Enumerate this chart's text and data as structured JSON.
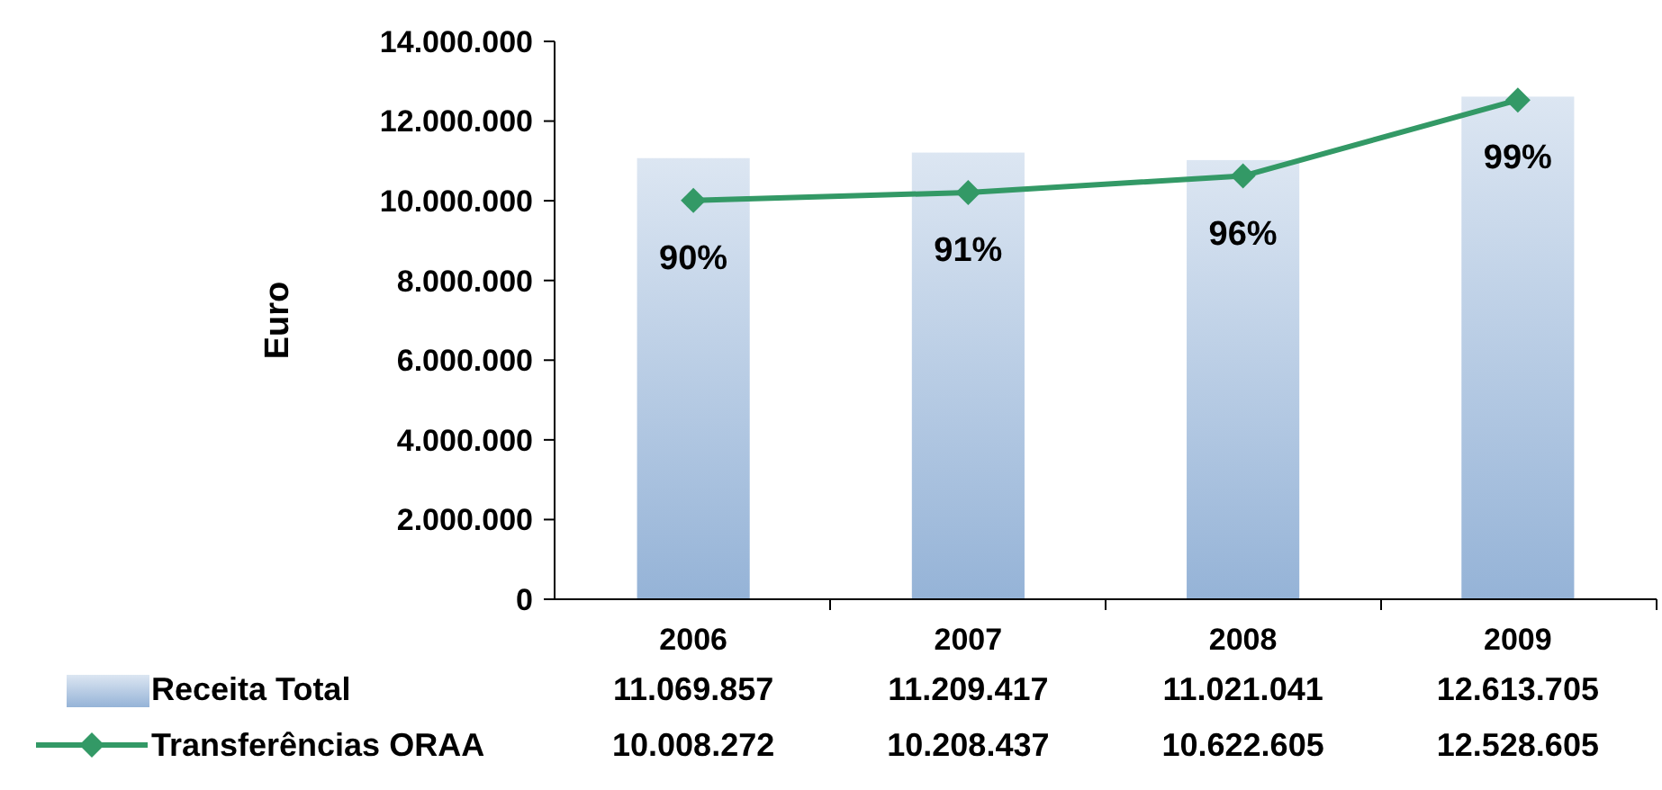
{
  "chart_data": {
    "type": "bar",
    "ylabel": "Euro",
    "categories": [
      "2006",
      "2007",
      "2008",
      "2009"
    ],
    "series": [
      {
        "name": "Receita Total",
        "color": "#95b3d7",
        "values": [
          11069857,
          11209417,
          11021041,
          12613705
        ],
        "value_labels": [
          "11.069.857",
          "11.209.417",
          "11.021.041",
          "12.613.705"
        ]
      },
      {
        "name": "Transferências ORAA",
        "type": "line",
        "color": "#339966",
        "marker": "diamond",
        "values": [
          10008272,
          10208437,
          10622605,
          12528605
        ],
        "value_labels": [
          "10.008.272",
          "10.208.437",
          "10.622.605",
          "12.528.605"
        ]
      }
    ],
    "annotations": [
      {
        "text": "90%",
        "x": "2006",
        "y": 10008272
      },
      {
        "text": "91%",
        "x": "2007",
        "y": 10208437
      },
      {
        "text": "96%",
        "x": "2008",
        "y": 10622605
      },
      {
        "text": "99%",
        "x": "2009",
        "y": 12528605
      }
    ],
    "ylim": [
      0,
      14000000
    ],
    "yticks": [
      {
        "value": 0,
        "label": "0"
      },
      {
        "value": 2000000,
        "label": "2.000.000"
      },
      {
        "value": 4000000,
        "label": "4.000.000"
      },
      {
        "value": 6000000,
        "label": "6.000.000"
      },
      {
        "value": 8000000,
        "label": "8.000.000"
      },
      {
        "value": 10000000,
        "label": "10.000.000"
      },
      {
        "value": 12000000,
        "label": "12.000.000"
      },
      {
        "value": 14000000,
        "label": "14.000.000"
      }
    ],
    "legend": "bottom"
  }
}
